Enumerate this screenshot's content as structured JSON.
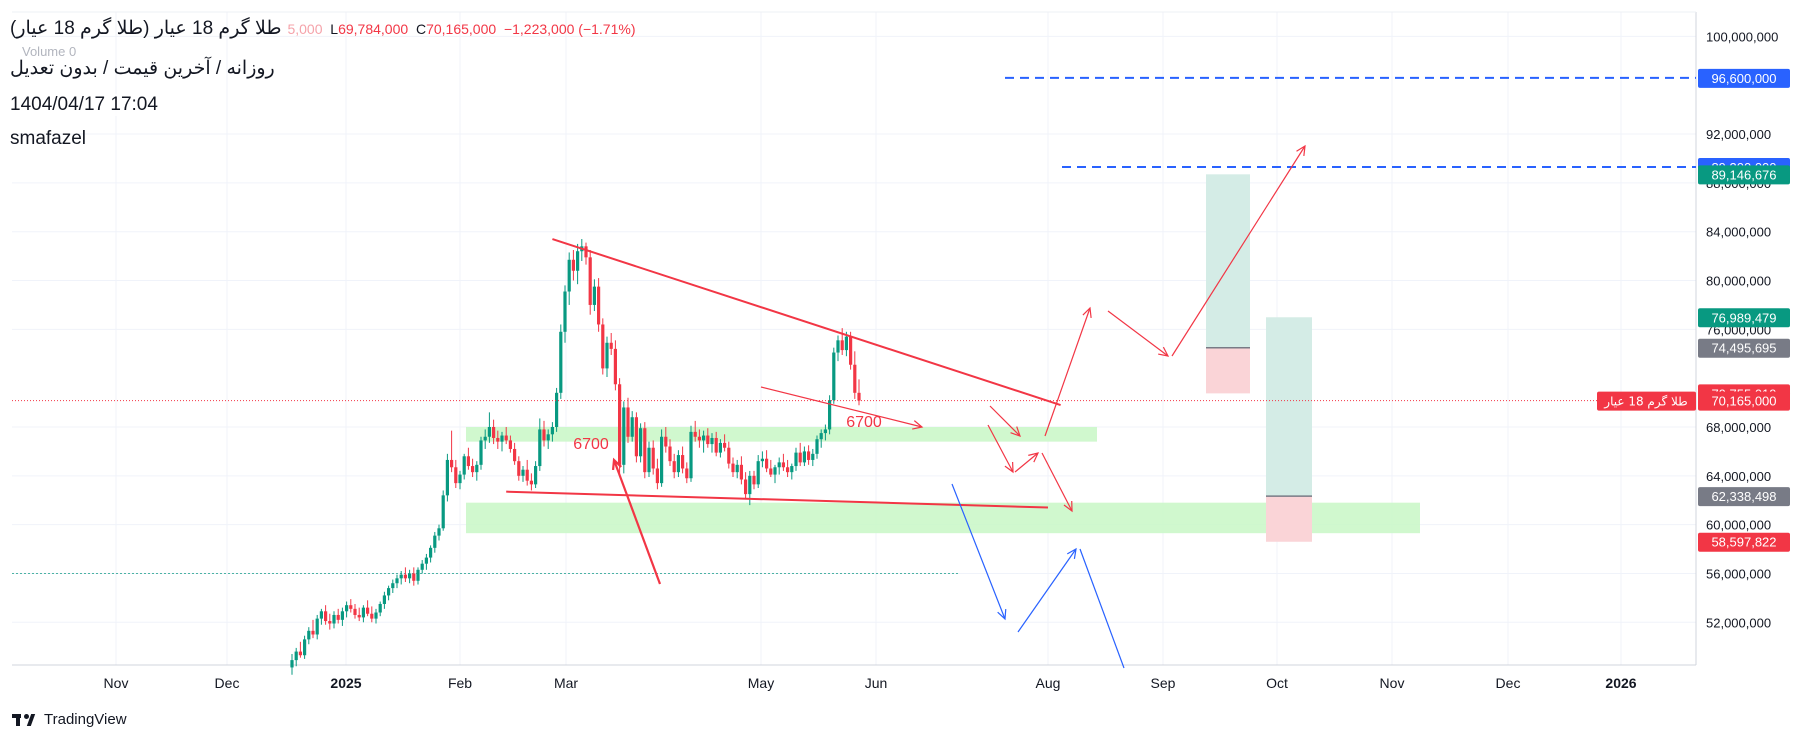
{
  "header": {
    "symbol_title": "طلا گرم 18 عیار (طلا گرم 18 عیار)",
    "ohlc": {
      "l_label": "L",
      "low": "69,784,000",
      "c_label": "C",
      "close": "70,165,000",
      "change": "−1,223,000 (−1.71%)"
    },
    "ohlc_faded_tail": "5,000",
    "volume_label": "Volume  0",
    "subtitle": "روزانه / آخرین قیمت / بدون تعدیل",
    "datetime": "1404/04/17 17:04",
    "author": "smafazel"
  },
  "footer": {
    "brand": "TradingView"
  },
  "colors": {
    "up": "#089981",
    "down": "#f23645",
    "blue": "#2962ff",
    "zone_green": "#c8f7c5",
    "pos_profit": "#d4ece6",
    "pos_loss": "#fad4d7",
    "gray_badge": "#787b86",
    "trend_red": "#f23645",
    "arrow_blue": "#2962ff"
  },
  "chart_data": {
    "type": "candlestick",
    "x_tick_labels": [
      "Nov",
      "Dec",
      "2025",
      "Feb",
      "Mar",
      "May",
      "Jun",
      "Aug",
      "Sep",
      "Oct",
      "Nov",
      "Dec",
      "2026"
    ],
    "bold_tick_labels": [
      "2025",
      "2026"
    ],
    "y_tick_labels": [
      "100,000,000",
      "92,000,000",
      "88,000,000",
      "84,000,000",
      "80,000,000",
      "76,000,000",
      "68,000,000",
      "64,000,000",
      "60,000,000",
      "56,000,000",
      "52,000,000"
    ],
    "ylim": [
      48500000,
      102000000
    ],
    "candles": [
      {
        "o": 48300000,
        "h": 49400000,
        "l": 47700000,
        "c": 48900000
      },
      {
        "o": 48900000,
        "h": 49900000,
        "l": 48400000,
        "c": 49600000
      },
      {
        "o": 49600000,
        "h": 50400000,
        "l": 49100000,
        "c": 49300000
      },
      {
        "o": 49300000,
        "h": 50900000,
        "l": 49000000,
        "c": 50600000
      },
      {
        "o": 50600000,
        "h": 51600000,
        "l": 50200000,
        "c": 51300000
      },
      {
        "o": 51300000,
        "h": 52200000,
        "l": 50700000,
        "c": 51000000
      },
      {
        "o": 51000000,
        "h": 52600000,
        "l": 50600000,
        "c": 52300000
      },
      {
        "o": 52300000,
        "h": 53100000,
        "l": 51800000,
        "c": 52900000
      },
      {
        "o": 52900000,
        "h": 53400000,
        "l": 51800000,
        "c": 52100000
      },
      {
        "o": 52100000,
        "h": 52700000,
        "l": 51400000,
        "c": 51900000
      },
      {
        "o": 51900000,
        "h": 52900000,
        "l": 51500000,
        "c": 52600000
      },
      {
        "o": 52600000,
        "h": 53100000,
        "l": 51900000,
        "c": 52200000
      },
      {
        "o": 52200000,
        "h": 53200000,
        "l": 51700000,
        "c": 52900000
      },
      {
        "o": 52900000,
        "h": 53700000,
        "l": 52400000,
        "c": 53400000
      },
      {
        "o": 53400000,
        "h": 53900000,
        "l": 52800000,
        "c": 53100000
      },
      {
        "o": 53100000,
        "h": 53500000,
        "l": 52300000,
        "c": 52600000
      },
      {
        "o": 52600000,
        "h": 53200000,
        "l": 52100000,
        "c": 52400000
      },
      {
        "o": 52400000,
        "h": 53400000,
        "l": 52000000,
        "c": 53200000
      },
      {
        "o": 53200000,
        "h": 53800000,
        "l": 52500000,
        "c": 52700000
      },
      {
        "o": 52700000,
        "h": 53300000,
        "l": 52000000,
        "c": 52300000
      },
      {
        "o": 52300000,
        "h": 53100000,
        "l": 51900000,
        "c": 52800000
      },
      {
        "o": 52800000,
        "h": 53700000,
        "l": 52500000,
        "c": 53500000
      },
      {
        "o": 53500000,
        "h": 54500000,
        "l": 53100000,
        "c": 54200000
      },
      {
        "o": 54200000,
        "h": 55000000,
        "l": 53800000,
        "c": 54800000
      },
      {
        "o": 54800000,
        "h": 55500000,
        "l": 54400000,
        "c": 55200000
      },
      {
        "o": 55200000,
        "h": 55900000,
        "l": 54800000,
        "c": 55600000
      },
      {
        "o": 55600000,
        "h": 56200000,
        "l": 55100000,
        "c": 55900000
      },
      {
        "o": 55900000,
        "h": 56500000,
        "l": 55300000,
        "c": 55600000
      },
      {
        "o": 55600000,
        "h": 56300000,
        "l": 55200000,
        "c": 56000000
      },
      {
        "o": 56000000,
        "h": 56500000,
        "l": 55000000,
        "c": 55400000
      },
      {
        "o": 55400000,
        "h": 56500000,
        "l": 55100000,
        "c": 56300000
      },
      {
        "o": 56300000,
        "h": 57100000,
        "l": 56000000,
        "c": 56800000
      },
      {
        "o": 56800000,
        "h": 57600000,
        "l": 56300000,
        "c": 57300000
      },
      {
        "o": 57300000,
        "h": 58300000,
        "l": 56900000,
        "c": 58100000
      },
      {
        "o": 58100000,
        "h": 59400000,
        "l": 57700000,
        "c": 59100000
      },
      {
        "o": 59100000,
        "h": 60000000,
        "l": 58700000,
        "c": 59700000
      },
      {
        "o": 59700000,
        "h": 62800000,
        "l": 59500000,
        "c": 62400000
      },
      {
        "o": 62400000,
        "h": 65800000,
        "l": 61900000,
        "c": 65300000
      },
      {
        "o": 65300000,
        "h": 67700000,
        "l": 64300000,
        "c": 64700000
      },
      {
        "o": 64700000,
        "h": 65300000,
        "l": 63000000,
        "c": 63400000
      },
      {
        "o": 63400000,
        "h": 64400000,
        "l": 62900000,
        "c": 64100000
      },
      {
        "o": 64100000,
        "h": 65800000,
        "l": 63700000,
        "c": 65600000
      },
      {
        "o": 65600000,
        "h": 66300000,
        "l": 64500000,
        "c": 64800000
      },
      {
        "o": 64800000,
        "h": 65400000,
        "l": 63900000,
        "c": 64300000
      },
      {
        "o": 64300000,
        "h": 65200000,
        "l": 63600000,
        "c": 64900000
      },
      {
        "o": 64900000,
        "h": 67200000,
        "l": 64500000,
        "c": 66900000
      },
      {
        "o": 66900000,
        "h": 67800000,
        "l": 66200000,
        "c": 67200000
      },
      {
        "o": 67200000,
        "h": 69200000,
        "l": 66700000,
        "c": 68000000
      },
      {
        "o": 68000000,
        "h": 68600000,
        "l": 66600000,
        "c": 67100000
      },
      {
        "o": 67100000,
        "h": 67700000,
        "l": 66200000,
        "c": 66800000
      },
      {
        "o": 66800000,
        "h": 67600000,
        "l": 66000000,
        "c": 67300000
      },
      {
        "o": 67300000,
        "h": 68000000,
        "l": 66600000,
        "c": 66900000
      },
      {
        "o": 66900000,
        "h": 67300000,
        "l": 65900000,
        "c": 66200000
      },
      {
        "o": 66200000,
        "h": 66700000,
        "l": 64900000,
        "c": 65200000
      },
      {
        "o": 65200000,
        "h": 65600000,
        "l": 63600000,
        "c": 64000000
      },
      {
        "o": 64000000,
        "h": 64800000,
        "l": 63500000,
        "c": 64500000
      },
      {
        "o": 64500000,
        "h": 65300000,
        "l": 63200000,
        "c": 63600000
      },
      {
        "o": 63600000,
        "h": 64200000,
        "l": 62800000,
        "c": 63300000
      },
      {
        "o": 63300000,
        "h": 65200000,
        "l": 63000000,
        "c": 64800000
      },
      {
        "o": 64800000,
        "h": 68700000,
        "l": 64400000,
        "c": 67800000
      },
      {
        "o": 67800000,
        "h": 68500000,
        "l": 66400000,
        "c": 66900000
      },
      {
        "o": 66900000,
        "h": 67800000,
        "l": 66200000,
        "c": 67400000
      },
      {
        "o": 67400000,
        "h": 68400000,
        "l": 66800000,
        "c": 68000000
      },
      {
        "o": 68000000,
        "h": 71200000,
        "l": 67600000,
        "c": 70800000
      },
      {
        "o": 70800000,
        "h": 76400000,
        "l": 70300000,
        "c": 75800000
      },
      {
        "o": 75800000,
        "h": 79600000,
        "l": 74900000,
        "c": 79100000
      },
      {
        "o": 79100000,
        "h": 82300000,
        "l": 78000000,
        "c": 81700000
      },
      {
        "o": 81700000,
        "h": 82500000,
        "l": 80000000,
        "c": 80800000
      },
      {
        "o": 80800000,
        "h": 83000000,
        "l": 79700000,
        "c": 82400000
      },
      {
        "o": 82400000,
        "h": 83400000,
        "l": 81600000,
        "c": 82800000
      },
      {
        "o": 82800000,
        "h": 83100000,
        "l": 81300000,
        "c": 81900000
      },
      {
        "o": 81900000,
        "h": 82500000,
        "l": 77200000,
        "c": 78000000
      },
      {
        "o": 78000000,
        "h": 80100000,
        "l": 77500000,
        "c": 79500000
      },
      {
        "o": 79500000,
        "h": 80200000,
        "l": 75800000,
        "c": 76400000
      },
      {
        "o": 76400000,
        "h": 76900000,
        "l": 72300000,
        "c": 72800000
      },
      {
        "o": 72800000,
        "h": 75400000,
        "l": 72100000,
        "c": 74900000
      },
      {
        "o": 74900000,
        "h": 75700000,
        "l": 73900000,
        "c": 74400000
      },
      {
        "o": 74400000,
        "h": 75100000,
        "l": 71000000,
        "c": 71500000
      },
      {
        "o": 71500000,
        "h": 72000000,
        "l": 64200000,
        "c": 64900000
      },
      {
        "o": 64900000,
        "h": 70100000,
        "l": 64200000,
        "c": 69600000
      },
      {
        "o": 69600000,
        "h": 70400000,
        "l": 66700000,
        "c": 67200000
      },
      {
        "o": 67200000,
        "h": 69300000,
        "l": 66800000,
        "c": 68800000
      },
      {
        "o": 68800000,
        "h": 69200000,
        "l": 65100000,
        "c": 65600000
      },
      {
        "o": 65600000,
        "h": 68300000,
        "l": 65100000,
        "c": 67900000
      },
      {
        "o": 67900000,
        "h": 68400000,
        "l": 63800000,
        "c": 64300000
      },
      {
        "o": 64300000,
        "h": 66800000,
        "l": 63900000,
        "c": 66300000
      },
      {
        "o": 66300000,
        "h": 66900000,
        "l": 64100000,
        "c": 64600000
      },
      {
        "o": 64600000,
        "h": 65400000,
        "l": 62900000,
        "c": 63400000
      },
      {
        "o": 63400000,
        "h": 67800000,
        "l": 63100000,
        "c": 67200000
      },
      {
        "o": 67200000,
        "h": 68000000,
        "l": 65900000,
        "c": 66400000
      },
      {
        "o": 66400000,
        "h": 67000000,
        "l": 64800000,
        "c": 65200000
      },
      {
        "o": 65200000,
        "h": 65800000,
        "l": 63800000,
        "c": 64300000
      },
      {
        "o": 64300000,
        "h": 66100000,
        "l": 63900000,
        "c": 65700000
      },
      {
        "o": 65700000,
        "h": 66400000,
        "l": 64200000,
        "c": 64600000
      },
      {
        "o": 64600000,
        "h": 65100000,
        "l": 63400000,
        "c": 63800000
      },
      {
        "o": 63800000,
        "h": 68100000,
        "l": 63500000,
        "c": 67600000
      },
      {
        "o": 67600000,
        "h": 68500000,
        "l": 66800000,
        "c": 67200000
      },
      {
        "o": 67200000,
        "h": 67800000,
        "l": 66300000,
        "c": 66900000
      },
      {
        "o": 66900000,
        "h": 67700000,
        "l": 65900000,
        "c": 67300000
      },
      {
        "o": 67300000,
        "h": 67900000,
        "l": 66300000,
        "c": 66600000
      },
      {
        "o": 66600000,
        "h": 67500000,
        "l": 65900000,
        "c": 67100000
      },
      {
        "o": 67100000,
        "h": 67600000,
        "l": 65600000,
        "c": 65900000
      },
      {
        "o": 65900000,
        "h": 67000000,
        "l": 65500000,
        "c": 66700000
      },
      {
        "o": 66700000,
        "h": 67400000,
        "l": 66000000,
        "c": 66300000
      },
      {
        "o": 66300000,
        "h": 66800000,
        "l": 64600000,
        "c": 65000000
      },
      {
        "o": 65000000,
        "h": 65500000,
        "l": 63900000,
        "c": 64300000
      },
      {
        "o": 64300000,
        "h": 65300000,
        "l": 63800000,
        "c": 64900000
      },
      {
        "o": 64900000,
        "h": 65600000,
        "l": 63300000,
        "c": 63700000
      },
      {
        "o": 63700000,
        "h": 64300000,
        "l": 62100000,
        "c": 62500000
      },
      {
        "o": 62500000,
        "h": 64400000,
        "l": 61600000,
        "c": 64000000
      },
      {
        "o": 64000000,
        "h": 64400000,
        "l": 62900000,
        "c": 63300000
      },
      {
        "o": 63300000,
        "h": 65700000,
        "l": 63000000,
        "c": 65200000
      },
      {
        "o": 65200000,
        "h": 66000000,
        "l": 64700000,
        "c": 65400000
      },
      {
        "o": 65400000,
        "h": 66100000,
        "l": 64300000,
        "c": 64600000
      },
      {
        "o": 64600000,
        "h": 65300000,
        "l": 63900000,
        "c": 64100000
      },
      {
        "o": 64100000,
        "h": 64900000,
        "l": 63400000,
        "c": 64700000
      },
      {
        "o": 64700000,
        "h": 65500000,
        "l": 64100000,
        "c": 65100000
      },
      {
        "o": 65100000,
        "h": 65800000,
        "l": 64400000,
        "c": 64700000
      },
      {
        "o": 64700000,
        "h": 65300000,
        "l": 63900000,
        "c": 64300000
      },
      {
        "o": 64300000,
        "h": 65000000,
        "l": 63700000,
        "c": 64800000
      },
      {
        "o": 64800000,
        "h": 66300000,
        "l": 64400000,
        "c": 65900000
      },
      {
        "o": 65900000,
        "h": 66700000,
        "l": 64800000,
        "c": 65100000
      },
      {
        "o": 65100000,
        "h": 66400000,
        "l": 64800000,
        "c": 66000000
      },
      {
        "o": 66000000,
        "h": 66500000,
        "l": 64900000,
        "c": 65300000
      },
      {
        "o": 65300000,
        "h": 66200000,
        "l": 64800000,
        "c": 65800000
      },
      {
        "o": 65800000,
        "h": 67300000,
        "l": 65400000,
        "c": 67000000
      },
      {
        "o": 67000000,
        "h": 67800000,
        "l": 66300000,
        "c": 67500000
      },
      {
        "o": 67500000,
        "h": 68200000,
        "l": 66900000,
        "c": 67800000
      },
      {
        "o": 67800000,
        "h": 70600000,
        "l": 67400000,
        "c": 70200000
      },
      {
        "o": 70200000,
        "h": 74500000,
        "l": 69900000,
        "c": 74100000
      },
      {
        "o": 74100000,
        "h": 75500000,
        "l": 73400000,
        "c": 75100000
      },
      {
        "o": 75100000,
        "h": 76100000,
        "l": 73900000,
        "c": 74300000
      },
      {
        "o": 74300000,
        "h": 75800000,
        "l": 73800000,
        "c": 75400000
      },
      {
        "o": 75400000,
        "h": 75800000,
        "l": 72700000,
        "c": 73100000
      },
      {
        "o": 73100000,
        "h": 74200000,
        "l": 70300000,
        "c": 70800000
      },
      {
        "o": 70800000,
        "h": 71900000,
        "l": 69784000,
        "c": 70165000
      }
    ],
    "support_zones": [
      {
        "from": 66800000,
        "to": 68000000
      },
      {
        "from": 59300000,
        "to": 61800000
      }
    ],
    "trendlines": [
      {
        "name": "descending-resistance",
        "p1": {
          "candle": 62,
          "price": 83400000
        },
        "p2": {
          "candle": 183,
          "price": 69800000
        }
      },
      {
        "name": "support-line",
        "p1": {
          "candle": 51,
          "price": 62700000
        },
        "p2": {
          "candle": 180,
          "price": 61400000
        }
      }
    ],
    "dashed_levels": [
      96600000,
      89300000
    ],
    "annotations": [
      {
        "label": "6700",
        "candle": 66,
        "price": 65800000
      },
      {
        "label": "6700",
        "candle": 131,
        "price": 67600000
      }
    ],
    "price_badges": [
      {
        "label": "96,600,000",
        "price": 96600000,
        "kind": "blue"
      },
      {
        "label": "89,300,000",
        "price": 89300000,
        "kind": "blue"
      },
      {
        "label": "89,146,676",
        "price": 88700000,
        "kind": "green"
      },
      {
        "label": "76,989,479",
        "price": 76989479,
        "kind": "green"
      },
      {
        "label": "74,495,695",
        "price": 74495695,
        "kind": "gray"
      },
      {
        "label": "70,755,019",
        "price": 70755019,
        "kind": "red"
      },
      {
        "label": "70,165,000",
        "price": 70165000,
        "kind": "red",
        "tag": "طلا گرم 18 عیار"
      },
      {
        "label": "62,338,498",
        "price": 62338498,
        "kind": "gray"
      },
      {
        "label": "58,597,822",
        "price": 58597822,
        "kind": "red"
      }
    ]
  }
}
